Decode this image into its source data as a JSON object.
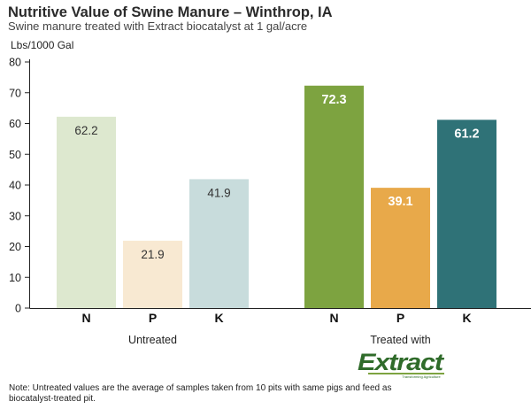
{
  "chart_data": {
    "type": "bar",
    "title": "Nutritive Value of Swine Manure – Winthrop, IA",
    "subtitle": "Swine manure treated with Extract biocatalyst at 1 gal/acre",
    "ylabel": "Lbs/1000 Gal",
    "ylim": [
      0,
      80
    ],
    "yticks": [
      0,
      10,
      20,
      30,
      40,
      50,
      60,
      70,
      80
    ],
    "groups": [
      {
        "label": "Untreated",
        "categories": [
          "N",
          "P",
          "K"
        ],
        "values": [
          62.2,
          21.9,
          41.9
        ],
        "value_labels": [
          "62.2",
          "21.9",
          "41.9"
        ],
        "colors": [
          "#dde8cf",
          "#f8e9d2",
          "#c8dcdc"
        ],
        "label_style": "light"
      },
      {
        "label": "Treated with",
        "categories": [
          "N",
          "P",
          "K"
        ],
        "values": [
          72.3,
          39.1,
          61.2
        ],
        "value_labels": [
          "72.3",
          "39.1",
          "61.2"
        ],
        "colors": [
          "#7da340",
          "#e8a94a",
          "#2f7277"
        ],
        "label_style": "dark"
      }
    ],
    "logo": {
      "text": "Extract",
      "tagline": "Transforming Agriculture",
      "color": "#2f6b2a",
      "accent": "#7da340"
    }
  },
  "note": "Note: Untreated values are the average of samples taken from 10 pits with same pigs and feed as biocatalyst-treated pit."
}
